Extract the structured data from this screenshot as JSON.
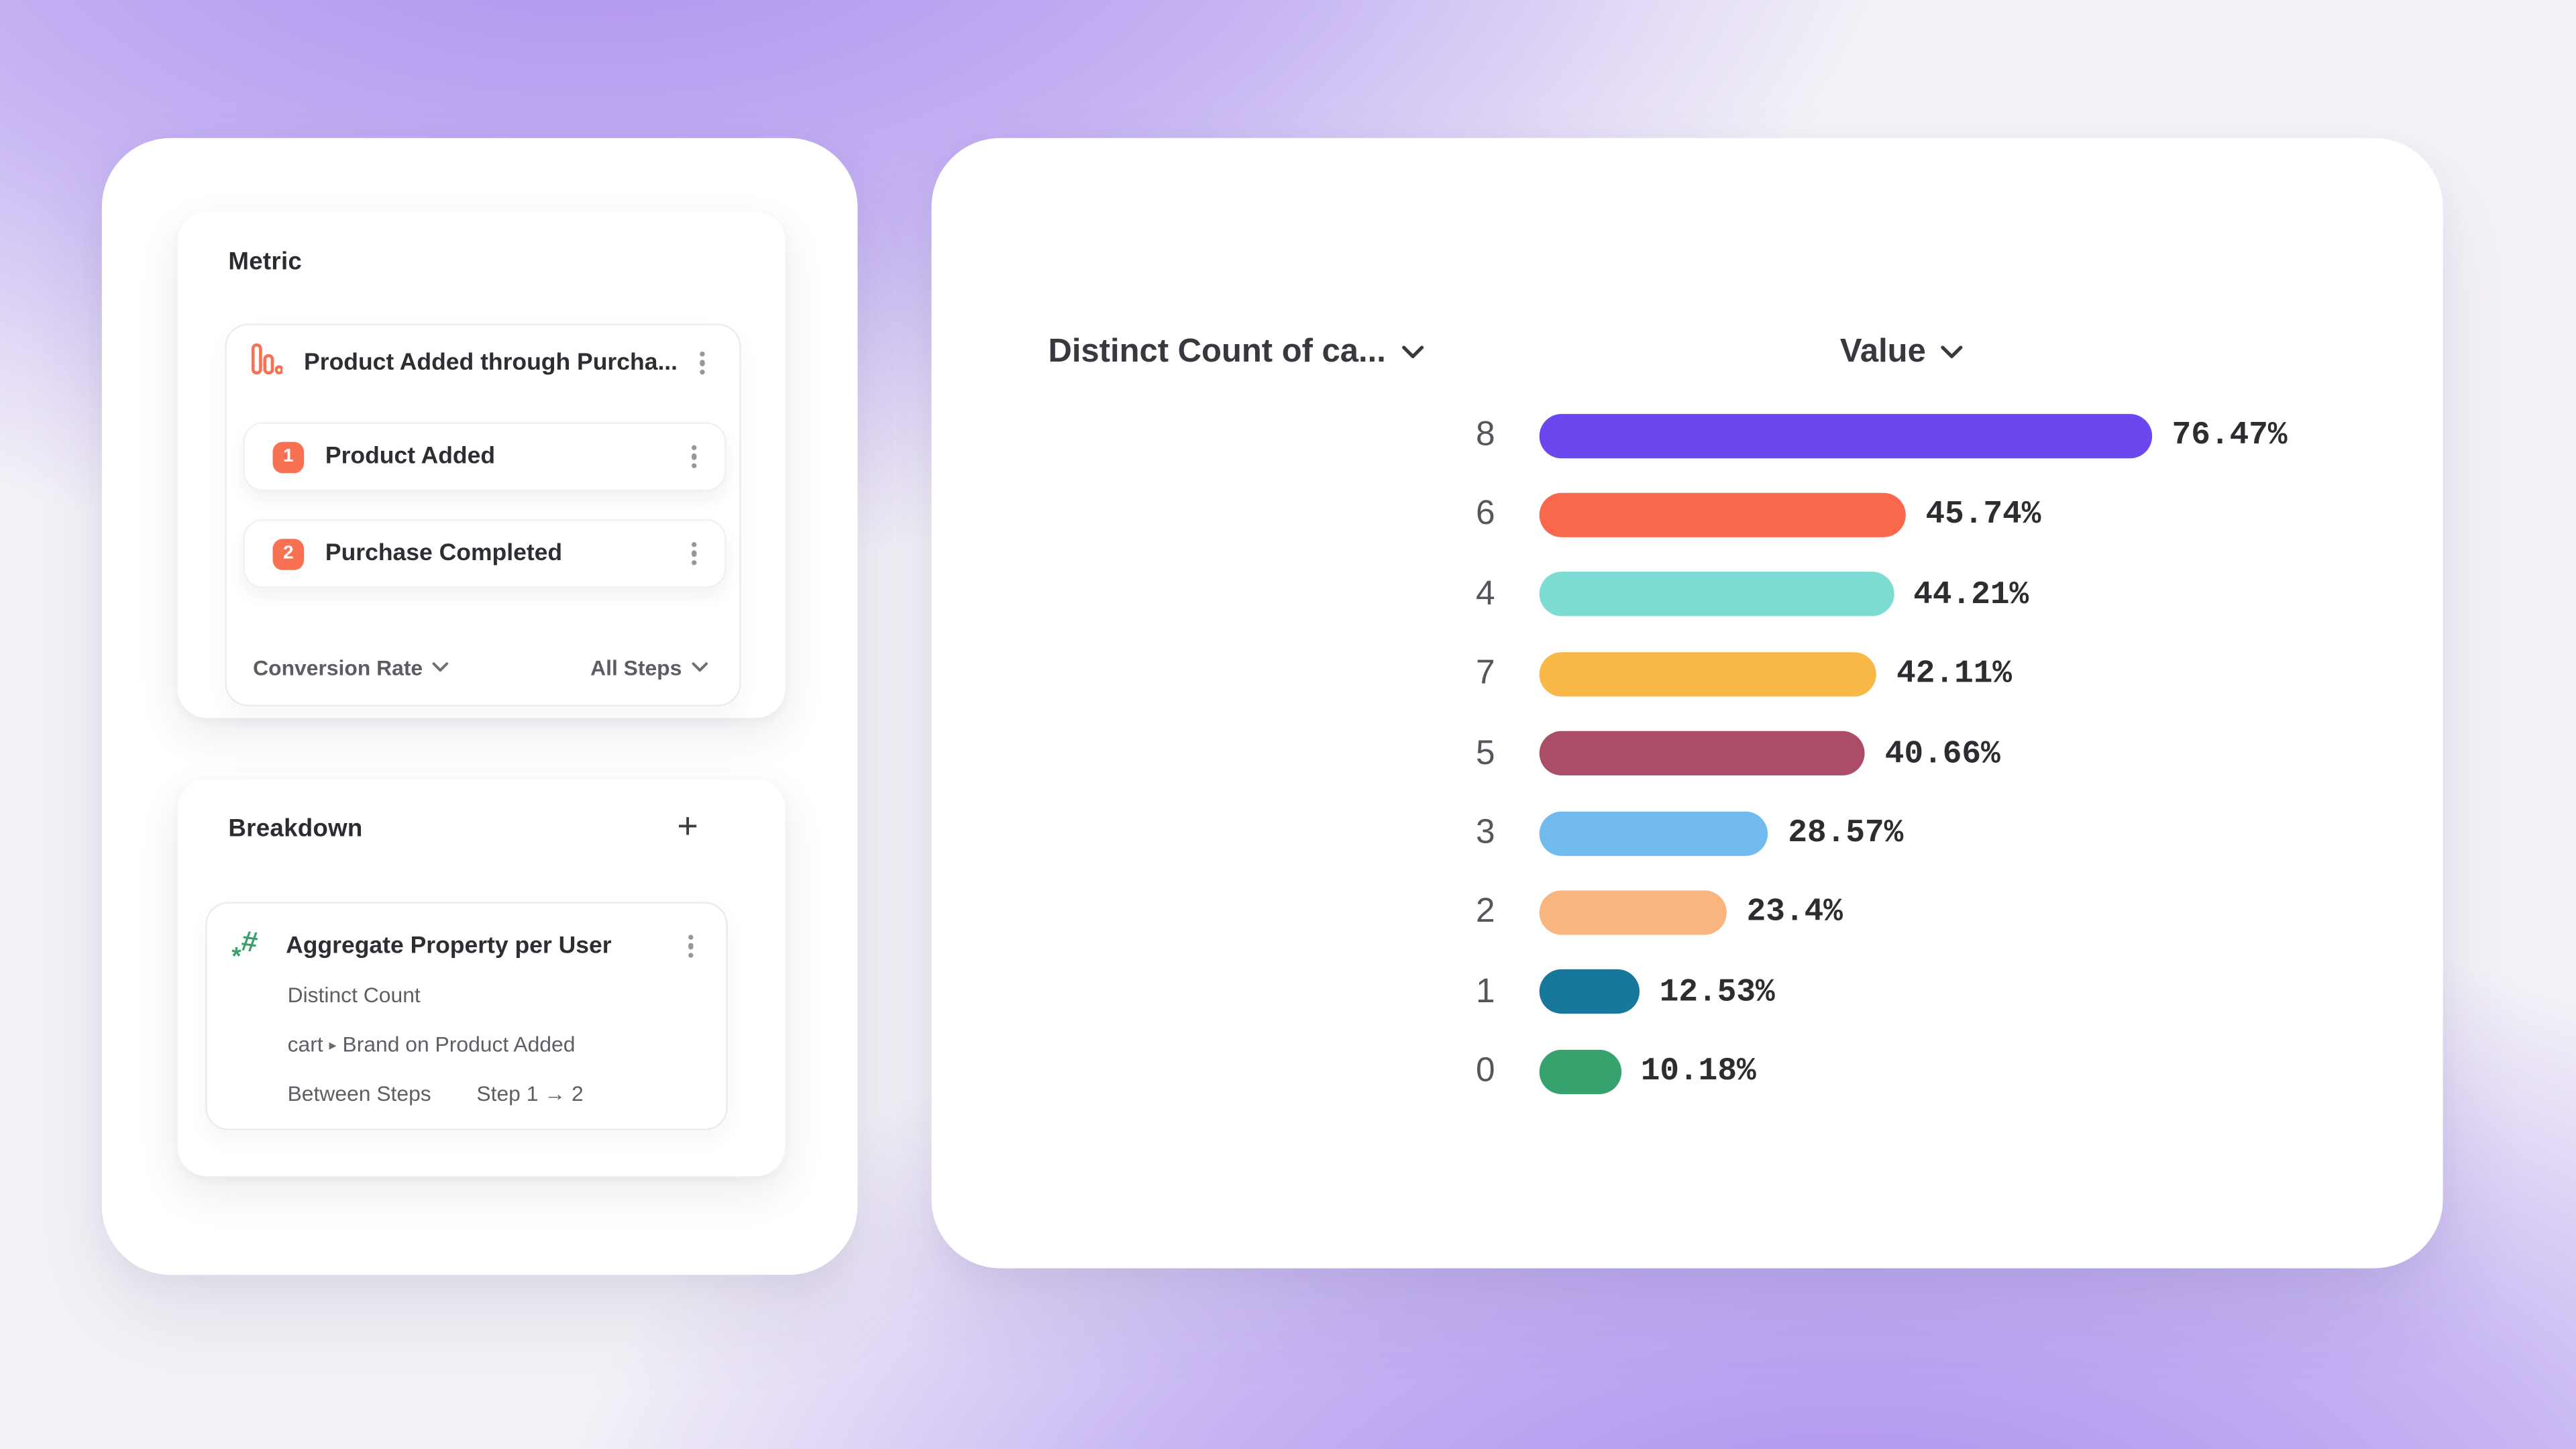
{
  "theme": {
    "accent_orange": "#F87153",
    "accent_green": "#37A169",
    "kebab_gray": "#96969d"
  },
  "metric_panel": {
    "title": "Metric",
    "funnel": {
      "name": "Product Added through Purcha...",
      "steps": [
        {
          "number": "1",
          "label": "Product Added"
        },
        {
          "number": "2",
          "label": "Purchase Completed"
        }
      ],
      "conversion_label": "Conversion Rate",
      "steps_scope_label": "All Steps"
    }
  },
  "breakdown_panel": {
    "title": "Breakdown",
    "add_label": "+",
    "item": {
      "name": "Aggregate Property per User",
      "aggregation": "Distinct Count",
      "property_prefix": "cart",
      "property_separator": "▸",
      "property_suffix": "Brand on Product Added",
      "between_steps_label": "Between Steps",
      "between_steps_value": "Step 1 → 2"
    }
  },
  "chart": {
    "column1_header": "Distinct Count of ca...",
    "column2_header": "Value"
  },
  "chart_data": {
    "type": "bar",
    "orientation": "horizontal",
    "title": "Distinct Count of ca... by Value",
    "categories": [
      "8",
      "6",
      "4",
      "7",
      "5",
      "3",
      "2",
      "1",
      "0"
    ],
    "values": [
      76.47,
      45.74,
      44.21,
      42.11,
      40.66,
      28.57,
      23.4,
      12.53,
      10.18
    ],
    "labels": [
      "76.47%",
      "45.74%",
      "44.21%",
      "42.11%",
      "40.66%",
      "28.57%",
      "23.4%",
      "12.53%",
      "10.18%"
    ],
    "bar_colors": [
      "#6A48EE",
      "#F9684C",
      "#7CDCD1",
      "#F7B845",
      "#AC4D67",
      "#70BAEE",
      "#FAB47E",
      "#17789B",
      "#36A36E"
    ],
    "xlim": [
      0,
      100
    ],
    "grid": false,
    "legend": false
  }
}
